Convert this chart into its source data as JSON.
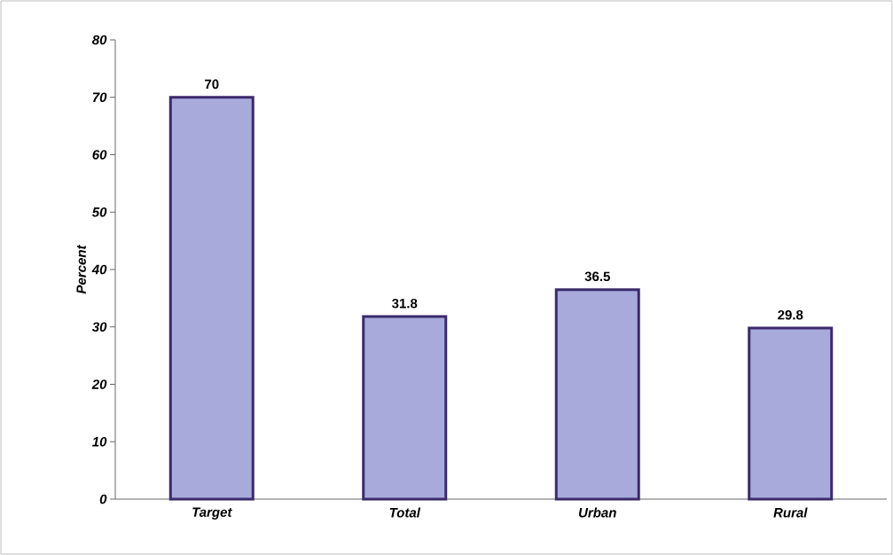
{
  "chart_data": {
    "type": "bar",
    "ylabel": "Percent",
    "categories": [
      "Target",
      "Total",
      "Urban",
      "Rural"
    ],
    "values": [
      70,
      31.8,
      36.5,
      29.8
    ],
    "color": "#a9aadc",
    "ylim": [
      0,
      80
    ],
    "yticks": [
      0,
      10,
      20,
      30,
      40,
      50,
      60,
      70,
      80
    ],
    "data_labels": true,
    "grid": false
  }
}
